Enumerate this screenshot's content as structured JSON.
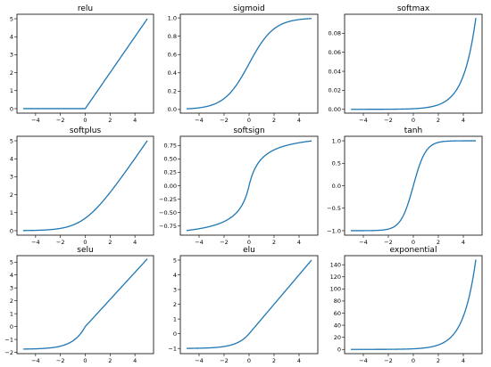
{
  "chart_data": [
    {
      "type": "line",
      "title": "relu",
      "function": "relu",
      "xlim": [
        -5.5,
        5.5
      ],
      "ylim": [
        -0.25,
        5.25
      ],
      "x_ticks": [
        -4,
        -2,
        0,
        2,
        4
      ],
      "y_ticks": [
        0,
        1,
        2,
        3,
        4,
        5
      ],
      "y_tick_labels": [
        "0",
        "1",
        "2",
        "3",
        "4",
        "5"
      ],
      "x_domain": [
        -5,
        5
      ],
      "color": "#1f77b4"
    },
    {
      "type": "line",
      "title": "sigmoid",
      "function": "sigmoid",
      "xlim": [
        -5.5,
        5.5
      ],
      "ylim": [
        -0.04,
        1.04
      ],
      "x_ticks": [
        -4,
        -2,
        0,
        2,
        4
      ],
      "y_ticks": [
        0,
        0.2,
        0.4,
        0.6,
        0.8,
        1.0
      ],
      "y_tick_labels": [
        "0.0",
        "0.2",
        "0.4",
        "0.6",
        "0.8",
        "1.0"
      ],
      "x_domain": [
        -5,
        5
      ],
      "color": "#1f77b4"
    },
    {
      "type": "line",
      "title": "softmax",
      "function": "softmax",
      "xlim": [
        -5.5,
        5.5
      ],
      "ylim": [
        -0.004,
        0.1
      ],
      "x_ticks": [
        -4,
        -2,
        0,
        2,
        4
      ],
      "y_ticks": [
        0,
        0.02,
        0.04,
        0.06,
        0.08
      ],
      "y_tick_labels": [
        "0.00",
        "0.02",
        "0.04",
        "0.06",
        "0.08"
      ],
      "x_domain": [
        -5,
        5
      ],
      "color": "#1f77b4"
    },
    {
      "type": "line",
      "title": "softplus",
      "function": "softplus",
      "xlim": [
        -5.5,
        5.5
      ],
      "ylim": [
        -0.25,
        5.25
      ],
      "x_ticks": [
        -4,
        -2,
        0,
        2,
        4
      ],
      "y_ticks": [
        0,
        1,
        2,
        3,
        4,
        5
      ],
      "y_tick_labels": [
        "0",
        "1",
        "2",
        "3",
        "4",
        "5"
      ],
      "x_domain": [
        -5,
        5
      ],
      "color": "#1f77b4"
    },
    {
      "type": "line",
      "title": "softsign",
      "function": "softsign",
      "xlim": [
        -5.5,
        5.5
      ],
      "ylim": [
        -0.92,
        0.92
      ],
      "x_ticks": [
        -4,
        -2,
        0,
        2,
        4
      ],
      "y_ticks": [
        -0.75,
        -0.5,
        -0.25,
        0,
        0.25,
        0.5,
        0.75
      ],
      "y_tick_labels": [
        "−0.75",
        "−0.50",
        "−0.25",
        "0.00",
        "0.25",
        "0.50",
        "0.75"
      ],
      "x_domain": [
        -5,
        5
      ],
      "color": "#1f77b4"
    },
    {
      "type": "line",
      "title": "tanh",
      "function": "tanh",
      "xlim": [
        -5.5,
        5.5
      ],
      "ylim": [
        -1.1,
        1.1
      ],
      "x_ticks": [
        -4,
        -2,
        0,
        2,
        4
      ],
      "y_ticks": [
        -1,
        -0.5,
        0,
        0.5,
        1
      ],
      "y_tick_labels": [
        "−1.0",
        "−0.5",
        "0.0",
        "0.5",
        "1.0"
      ],
      "x_domain": [
        -5,
        5
      ],
      "color": "#1f77b4"
    },
    {
      "type": "line",
      "title": "selu",
      "function": "selu",
      "xlim": [
        -5.5,
        5.5
      ],
      "ylim": [
        -2.1,
        5.5
      ],
      "x_ticks": [
        -4,
        -2,
        0,
        2,
        4
      ],
      "y_ticks": [
        -2,
        -1,
        0,
        1,
        2,
        3,
        4,
        5
      ],
      "y_tick_labels": [
        "−2",
        "−1",
        "0",
        "1",
        "2",
        "3",
        "4",
        "5"
      ],
      "x_domain": [
        -5,
        5
      ],
      "color": "#1f77b4"
    },
    {
      "type": "line",
      "title": "elu",
      "function": "elu",
      "xlim": [
        -5.5,
        5.5
      ],
      "ylim": [
        -1.35,
        5.3
      ],
      "x_ticks": [
        -4,
        -2,
        0,
        2,
        4
      ],
      "y_ticks": [
        -1,
        0,
        1,
        2,
        3,
        4,
        5
      ],
      "y_tick_labels": [
        "−1",
        "0",
        "1",
        "2",
        "3",
        "4",
        "5"
      ],
      "x_domain": [
        -5,
        5
      ],
      "color": "#1f77b4"
    },
    {
      "type": "line",
      "title": "exponential",
      "function": "exponential",
      "xlim": [
        -5.5,
        5.5
      ],
      "ylim": [
        -7,
        155
      ],
      "x_ticks": [
        -4,
        -2,
        0,
        2,
        4
      ],
      "y_ticks": [
        0,
        20,
        40,
        60,
        80,
        100,
        120,
        140
      ],
      "y_tick_labels": [
        "0",
        "20",
        "40",
        "60",
        "80",
        "100",
        "120",
        "140"
      ],
      "x_domain": [
        -5,
        5
      ],
      "color": "#1f77b4"
    }
  ]
}
